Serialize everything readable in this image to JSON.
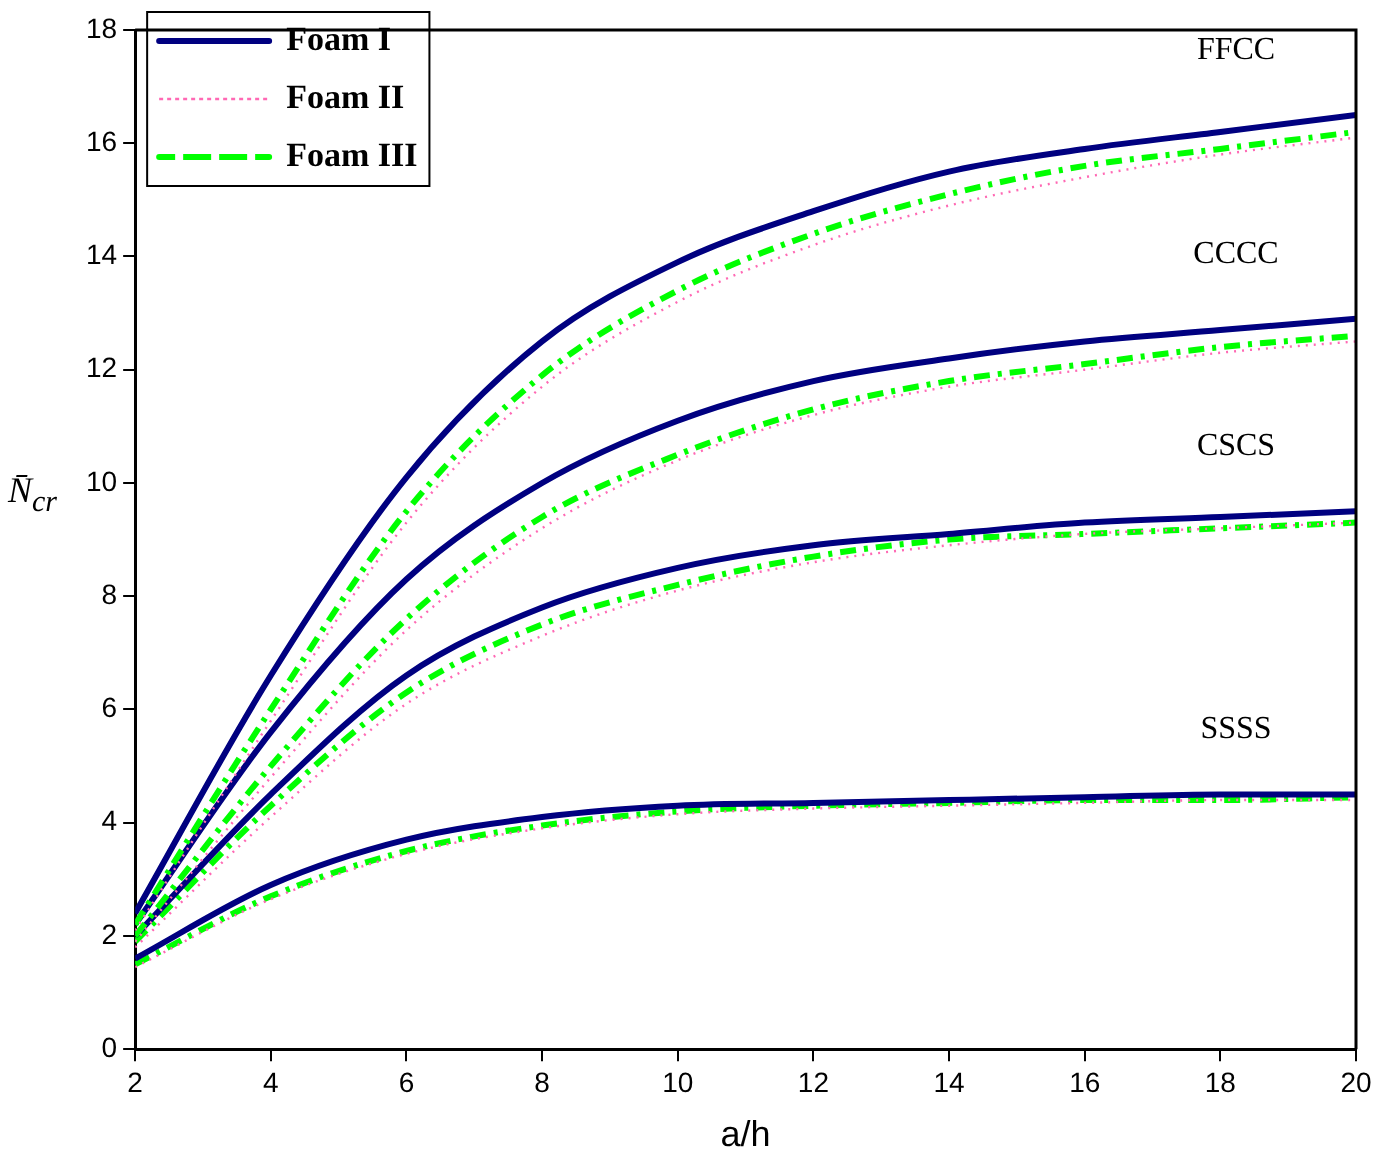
{
  "chart_data": {
    "type": "line",
    "xlabel": "a/h",
    "ylabel": "N̄$_{cr}$",
    "x": [
      2,
      4,
      6,
      8,
      10,
      12,
      14,
      16,
      18,
      20
    ],
    "xlim": [
      2,
      20
    ],
    "xticks": [
      2,
      4,
      6,
      8,
      10,
      12,
      14,
      16,
      18,
      20
    ],
    "ylim": [
      0,
      18
    ],
    "yticks": [
      0,
      2,
      4,
      6,
      8,
      10,
      12,
      14,
      16,
      18
    ],
    "grid": false,
    "legend": "top left",
    "marker": "none",
    "series": [
      {
        "name": "Foam I",
        "color": "#000080",
        "line_style": "solid",
        "values": [
          2.4,
          6.6,
          10.1,
          12.5,
          13.9,
          14.8,
          15.5,
          15.9,
          16.2,
          16.5
        ]
      },
      {
        "name": "Foam II",
        "color": "#ff69b4",
        "line_style": "dotted",
        "values": [
          2.1,
          5.8,
          9.3,
          11.7,
          13.2,
          14.2,
          14.9,
          15.4,
          15.8,
          16.1
        ]
      },
      {
        "name": "Foam III",
        "color": "#00ff00",
        "line_style": "dashed",
        "values": [
          2.2,
          6.0,
          9.5,
          11.9,
          13.4,
          14.4,
          15.1,
          15.6,
          15.9,
          16.2
        ]
      },
      {
        "color": "#000080",
        "line_style": "solid",
        "values": [
          2.2,
          5.6,
          8.3,
          10.0,
          11.1,
          11.8,
          12.2,
          12.5,
          12.7,
          12.9
        ]
      },
      {
        "color": "#ff69b4",
        "line_style": "dotted",
        "values": [
          1.9,
          4.8,
          7.4,
          9.2,
          10.4,
          11.2,
          11.7,
          12.0,
          12.3,
          12.5
        ]
      },
      {
        "color": "#00ff00",
        "line_style": "dashed",
        "values": [
          2.0,
          5.0,
          7.6,
          9.4,
          10.5,
          11.3,
          11.8,
          12.1,
          12.4,
          12.6
        ]
      },
      {
        "color": "#000080",
        "line_style": "solid",
        "values": [
          2.0,
          4.5,
          6.6,
          7.8,
          8.5,
          8.9,
          9.1,
          9.3,
          9.4,
          9.5
        ]
      },
      {
        "color": "#ff69b4",
        "line_style": "dotted",
        "values": [
          1.8,
          4.1,
          6.1,
          7.3,
          8.1,
          8.6,
          8.9,
          9.1,
          9.2,
          9.3
        ]
      },
      {
        "color": "#00ff00",
        "line_style": "dashed",
        "values": [
          1.9,
          4.3,
          6.3,
          7.5,
          8.2,
          8.7,
          9.0,
          9.1,
          9.2,
          9.3
        ]
      },
      {
        "color": "#000080",
        "line_style": "solid",
        "values": [
          1.6,
          2.9,
          3.7,
          4.1,
          4.3,
          4.35,
          4.4,
          4.45,
          4.5,
          4.5
        ]
      },
      {
        "color": "#ff69b4",
        "line_style": "dotted",
        "values": [
          1.45,
          2.65,
          3.45,
          3.9,
          4.15,
          4.25,
          4.3,
          4.35,
          4.4,
          4.4
        ]
      },
      {
        "color": "#00ff00",
        "line_style": "dashed",
        "values": [
          1.5,
          2.7,
          3.5,
          3.95,
          4.2,
          4.3,
          4.35,
          4.4,
          4.4,
          4.45
        ]
      }
    ],
    "annotations": [
      "FFCC",
      "CCCC",
      "CSCS",
      "SSSS"
    ]
  }
}
